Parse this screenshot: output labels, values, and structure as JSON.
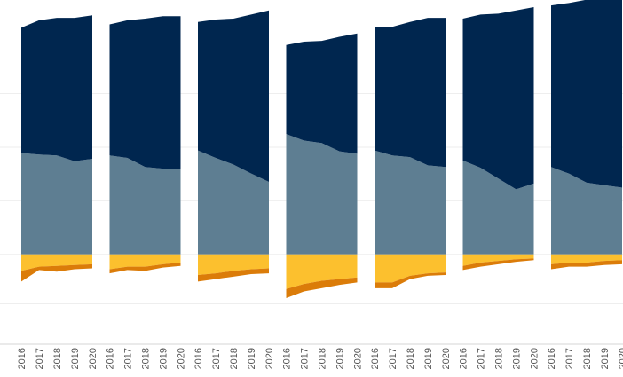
{
  "chart_data": {
    "type": "area",
    "title": "",
    "xlabel": "",
    "ylabel": "",
    "panels": 7,
    "categories": [
      "2016",
      "2017",
      "2018",
      "2019",
      "2020"
    ],
    "ylim": [
      -95,
      300
    ],
    "zero_line": true,
    "grid": true,
    "legend": "none",
    "colors": {
      "top_layer": "#00264f",
      "mid_layer": "#5e7e92",
      "neg_inner": "#fcc02e",
      "neg_outer": "#db7c09",
      "grid": "#eeeeee",
      "axis": "#d4d4d4"
    },
    "series": [
      {
        "layer": "mid_layer",
        "values": [
          [
            123,
            121,
            120,
            113,
            116
          ],
          [
            120,
            117,
            106,
            104,
            103
          ],
          [
            126,
            117,
            109,
            98,
            88
          ],
          [
            146,
            138,
            135,
            125,
            122
          ],
          [
            126,
            120,
            118,
            108,
            106
          ],
          [
            114,
            105,
            92,
            79,
            86
          ],
          [
            106,
            98,
            87,
            84,
            81
          ]
        ]
      },
      {
        "layer": "top_layer",
        "values": [
          [
            152,
            163,
            167,
            174,
            174
          ],
          [
            159,
            167,
            180,
            185,
            186
          ],
          [
            156,
            168,
            177,
            193,
            208
          ],
          [
            108,
            120,
            124,
            139,
            146
          ],
          [
            150,
            156,
            164,
            179,
            181
          ],
          [
            172,
            186,
            200,
            217,
            214
          ],
          [
            196,
            207,
            222,
            230,
            229
          ]
        ]
      },
      {
        "layer": "neg_inner",
        "values": [
          [
            -20,
            -15,
            -14,
            -13,
            -12
          ],
          [
            -18,
            -15,
            -15,
            -12,
            -10
          ],
          [
            -25,
            -23,
            -20,
            -18,
            -17
          ],
          [
            -42,
            -36,
            -32,
            -30,
            -28
          ],
          [
            -34,
            -34,
            -26,
            -23,
            -22
          ],
          [
            -14,
            -10,
            -8,
            -6,
            -5
          ],
          [
            -12,
            -10,
            -10,
            -8,
            -7
          ]
        ]
      },
      {
        "layer": "neg_outer",
        "values": [
          [
            -13,
            -4,
            -7,
            -5,
            -5
          ],
          [
            -5,
            -4,
            -5,
            -4,
            -4
          ],
          [
            -8,
            -7,
            -7,
            -6,
            -6
          ],
          [
            -11,
            -9,
            -9,
            -7,
            -6
          ],
          [
            -7,
            -7,
            -4,
            -3,
            -3
          ],
          [
            -5,
            -5,
            -4,
            -3,
            -2
          ],
          [
            -6,
            -5,
            -5,
            -5,
            -5
          ]
        ]
      }
    ]
  }
}
